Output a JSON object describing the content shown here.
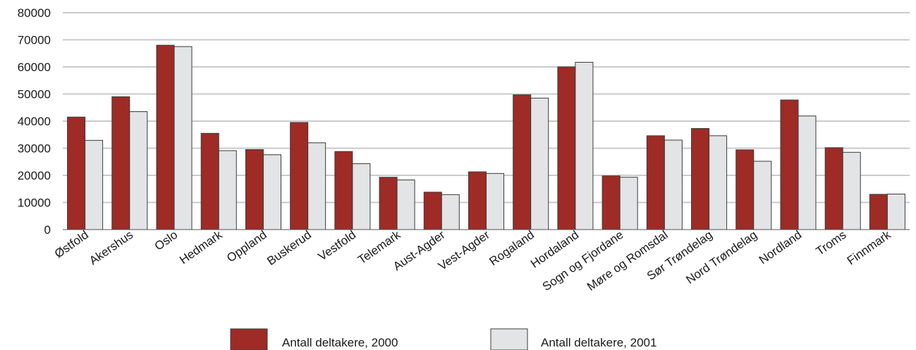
{
  "chart_data": {
    "type": "bar",
    "categories": [
      "Østfold",
      "Akershus",
      "Oslo",
      "Hedmark",
      "Oppland",
      "Buskerud",
      "Vestfold",
      "Telemark",
      "Aust-Agder",
      "Vest-Agder",
      "Rogaland",
      "Hordaland",
      "Sogn og Fjordane",
      "Møre og Romsdal",
      "Sør Trøndelag",
      "Nord Trøndelag",
      "Nordland",
      "Troms",
      "Finnmark"
    ],
    "series": [
      {
        "name": "Antall deltakere, 2000",
        "color": "#9e2b25",
        "values": [
          41500,
          49000,
          68000,
          35500,
          29500,
          39500,
          28800,
          19300,
          13800,
          21300,
          49700,
          60000,
          19800,
          34600,
          37300,
          29400,
          47800,
          30200,
          13000
        ]
      },
      {
        "name": "Antall deltakere, 2001",
        "color": "#e3e4e5",
        "values": [
          32900,
          43500,
          67500,
          29100,
          27600,
          32000,
          24300,
          18300,
          12900,
          20700,
          48500,
          61700,
          19300,
          33000,
          34600,
          25200,
          41900,
          28500,
          13100
        ]
      }
    ],
    "y_ticks": [
      "0",
      "10000",
      "20000",
      "30000",
      "40000",
      "50000",
      "60000",
      "70000",
      "80000"
    ],
    "ylim": [
      0,
      80000
    ],
    "grid": true,
    "legend_position": "bottom"
  }
}
